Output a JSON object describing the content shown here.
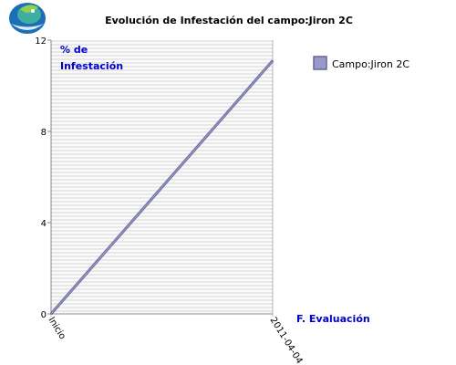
{
  "logo": {
    "icon": "hands-globe-logo-icon",
    "colors": [
      "#1a6fb5",
      "#3fb0a0",
      "#8fd14f"
    ]
  },
  "chart_data": {
    "type": "line",
    "title": "Evolución de Infestación del campo:Jiron 2C",
    "xlabel": "F. Evaluación",
    "ylabel": "% de\nInfestación",
    "categories": [
      "Inicio",
      "2011-04-04"
    ],
    "ylim": [
      0,
      12
    ],
    "yticks": [
      0,
      4,
      8,
      12
    ],
    "series": [
      {
        "name": "Campo:Jiron 2C",
        "values": [
          0,
          11.1
        ],
        "color": "#9999cc",
        "stroke": "#666699"
      }
    ],
    "grid": true,
    "gridStyle": "horizontal-stripes",
    "legend": "right",
    "colors": {
      "background": "#ffffff",
      "plot_background": "#e8e8e8",
      "grid_line": "#ffffff",
      "axis_label": "#0000cc",
      "axis": "#888888"
    }
  }
}
